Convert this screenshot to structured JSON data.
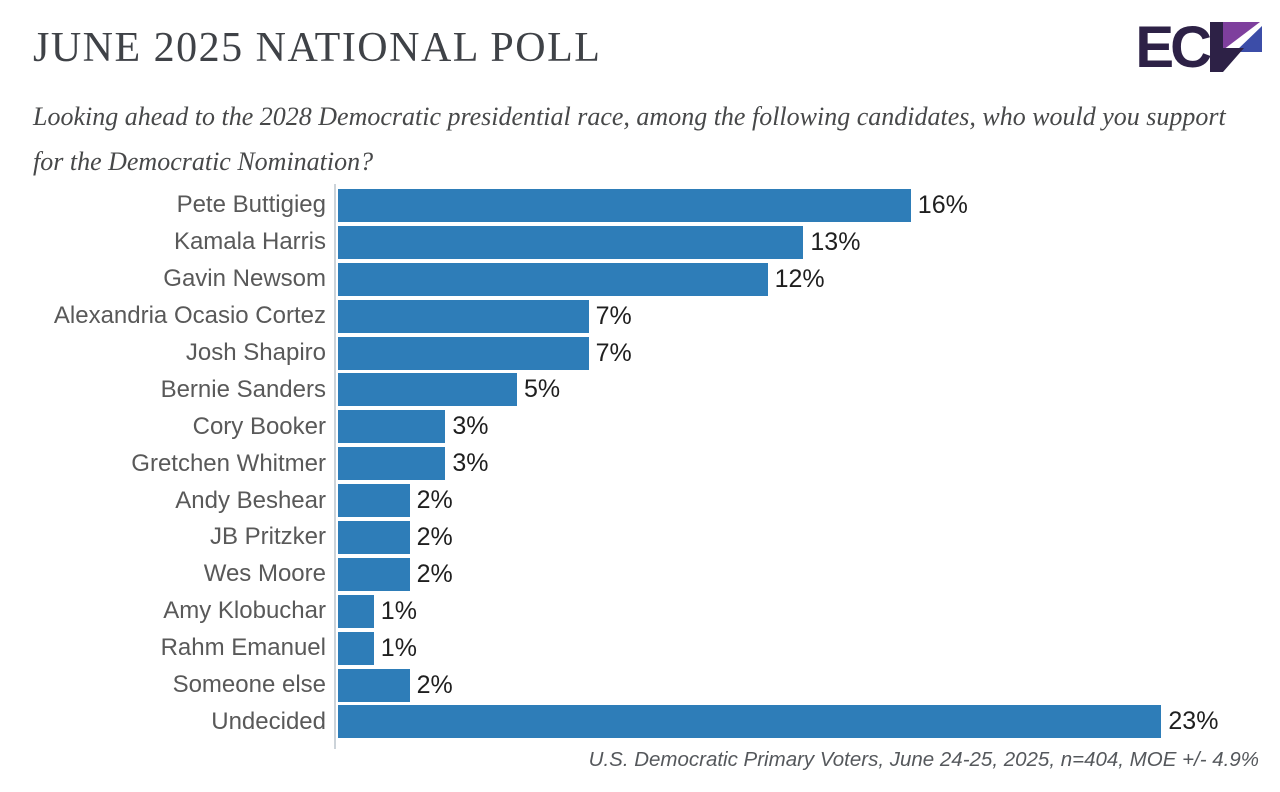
{
  "header": {
    "title": "JUNE 2025 NATIONAL POLL",
    "subtitle": "Looking ahead to the 2028 Democratic presidential race, among the following candidates, who would you support for the Democratic Nomination?",
    "logo": {
      "text": "EC",
      "stylized_letter": "P",
      "dark_color": "#2d2146",
      "purple_color": "#7e3f9d",
      "blue_color": "#3c4da8"
    }
  },
  "chart_data": {
    "type": "bar",
    "orientation": "horizontal",
    "title": "JUNE 2025 NATIONAL POLL",
    "categories": [
      "Pete Buttigieg",
      "Kamala Harris",
      "Gavin Newsom",
      "Alexandria Ocasio Cortez",
      "Josh Shapiro",
      "Bernie Sanders",
      "Cory Booker",
      "Gretchen Whitmer",
      "Andy Beshear",
      "JB Pritzker",
      "Wes Moore",
      "Amy Klobuchar",
      "Rahm Emanuel",
      "Someone else",
      "Undecided"
    ],
    "values": [
      16,
      13,
      12,
      7,
      7,
      5,
      3,
      3,
      2,
      2,
      2,
      1,
      1,
      2,
      23
    ],
    "labels": [
      "16%",
      "13%",
      "12%",
      "7%",
      "7%",
      "5%",
      "3%",
      "3%",
      "2%",
      "2%",
      "2%",
      "1%",
      "1%",
      "2%",
      "23%"
    ],
    "value_suffix": "%",
    "bar_color": "#2e7db8",
    "label_color": "#595959",
    "value_label_color": "#1f1f1f",
    "xlim": [
      0,
      24.5
    ],
    "grid": false,
    "legend": false
  },
  "footer": {
    "source_note": "U.S. Democratic Primary Voters, June 24-25, 2025, n=404, MOE +/- 4.9%"
  }
}
